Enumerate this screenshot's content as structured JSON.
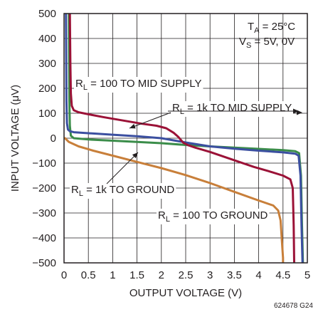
{
  "chart_data": {
    "type": "line",
    "title": "",
    "xlabel": "OUTPUT VOLTAGE (V)",
    "ylabel": "INPUT VOLTAGE (μV)",
    "xlim": [
      0,
      5
    ],
    "ylim": [
      -500,
      500
    ],
    "x_ticks": [
      "0",
      "0.5",
      "1",
      "1.5",
      "2",
      "2.5",
      "3",
      "3.5",
      "4",
      "4.5",
      "5"
    ],
    "y_ticks": [
      "500",
      "400",
      "300",
      "200",
      "100",
      "0",
      "−100",
      "−200",
      "−300",
      "−400",
      "−500"
    ],
    "grid": true,
    "conditions": [
      {
        "main": "T",
        "sub": "A",
        "rest": " = 25°C"
      },
      {
        "main": "V",
        "sub": "S",
        "rest": " = 5V, 0V"
      }
    ],
    "figure_code": "624678 G24",
    "series": [
      {
        "name": "R_L = 100 TO MID SUPPLY",
        "label": {
          "main": "R",
          "sub": "L",
          "rest": " = 100 TO MID SUPPLY"
        },
        "color": "#9b1237",
        "x": [
          0.12,
          0.13,
          0.14,
          0.16,
          0.2,
          0.3,
          0.5,
          0.8,
          1.0,
          1.3,
          1.6,
          1.9,
          2.1,
          2.25,
          2.35,
          2.45,
          2.55,
          2.7,
          3.0,
          3.3,
          3.6,
          3.9,
          4.2,
          4.5,
          4.65,
          4.7,
          4.72,
          4.73
        ],
        "y": [
          500,
          300,
          180,
          130,
          112,
          104,
          96,
          85,
          78,
          68,
          58,
          50,
          40,
          22,
          5,
          -18,
          -28,
          -38,
          -55,
          -75,
          -95,
          -115,
          -132,
          -150,
          -165,
          -200,
          -350,
          -500
        ]
      },
      {
        "name": "R_L = 1k TO MID SUPPLY",
        "label": {
          "main": "R",
          "sub": "L",
          "rest": " = 1k TO MID SUPPLY"
        },
        "color": "#3b4fa0",
        "x": [
          0.04,
          0.045,
          0.05,
          0.06,
          0.08,
          0.12,
          0.2,
          0.5,
          1.0,
          1.5,
          2.0,
          2.5,
          3.0,
          3.5,
          4.0,
          4.5,
          4.75,
          4.82,
          4.86,
          4.88,
          4.9
        ],
        "y": [
          500,
          300,
          150,
          60,
          35,
          28,
          24,
          20,
          14,
          8,
          0,
          -17,
          -33,
          -42,
          -50,
          -57,
          -62,
          -70,
          -150,
          -350,
          -500
        ]
      },
      {
        "name": "R_L = 1k TO GROUND",
        "label": {
          "main": "R",
          "sub": "L",
          "rest": " = 1k TO GROUND"
        },
        "color": "#3b8d4a",
        "x": [
          0.1,
          0.105,
          0.11,
          0.12,
          0.14,
          0.2,
          0.5,
          1.0,
          1.5,
          2.0,
          2.5,
          3.0,
          3.5,
          4.0,
          4.5,
          4.75,
          4.83,
          4.87,
          4.89,
          4.91
        ],
        "y": [
          500,
          300,
          150,
          50,
          10,
          0,
          -5,
          -10,
          -15,
          -20,
          -27,
          -33,
          -38,
          -43,
          -48,
          -52,
          -60,
          -150,
          -350,
          -500
        ]
      },
      {
        "name": "R_L = 100 TO GROUND",
        "label": {
          "main": "R",
          "sub": "L",
          "rest": " = 100 TO GROUND"
        },
        "color": "#c87f3a",
        "x": [
          0.02,
          0.1,
          0.3,
          0.6,
          1.0,
          1.5,
          2.0,
          2.5,
          3.0,
          3.5,
          4.0,
          4.3,
          4.4,
          4.45,
          4.48,
          4.5,
          4.5
        ],
        "y": [
          0,
          -15,
          -33,
          -50,
          -70,
          -95,
          -120,
          -148,
          -180,
          -215,
          -250,
          -270,
          -290,
          -330,
          -420,
          -480,
          -500
        ]
      }
    ]
  }
}
